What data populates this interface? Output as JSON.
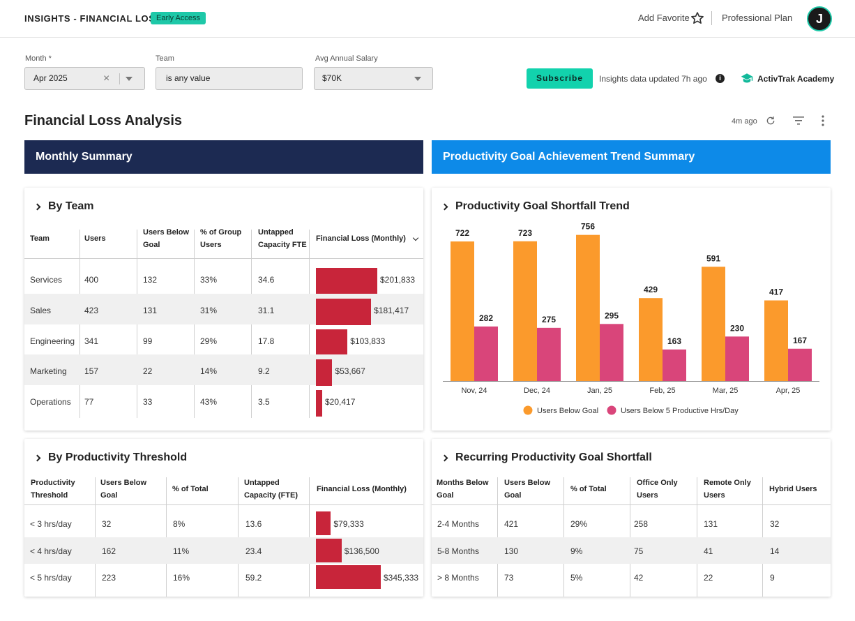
{
  "header": {
    "app_title": "INSIGHTS - FINANCIAL LOSS",
    "badge": "Early Access",
    "add_favorite": "Add Favorite",
    "plan": "Professional Plan",
    "avatar_initial": "J"
  },
  "filters": {
    "month_label": "Month *",
    "month_value": "Apr 2025",
    "team_label": "Team",
    "team_value": "is any value",
    "salary_label": "Avg Annual Salary",
    "salary_value": "$70K",
    "subscribe": "Subscribe",
    "updated": "Insights data updated 7h ago",
    "academy": "ActivTrak Academy"
  },
  "page": {
    "title": "Financial Loss Analysis",
    "updated_ago": "4m ago"
  },
  "banners": {
    "left": "Monthly Summary",
    "right": "Productivity Goal Achievement Trend Summary"
  },
  "colors": {
    "accent": "#12d2ad",
    "navy": "#1c2a52",
    "blue": "#0d8ae8",
    "loss_bar": "#c8253a",
    "orange": "#fb9a2c",
    "pink": "#d9457a"
  },
  "by_team": {
    "title": "By Team",
    "columns": [
      "Team",
      "Users",
      "Users Below Goal",
      "% of Group Users",
      "Untapped Capacity FTE",
      "Financial Loss (Monthly)"
    ],
    "rows": [
      {
        "team": "Services",
        "users": "400",
        "below": "132",
        "pct": "33%",
        "fte": "34.6",
        "loss": "$201,833",
        "loss_value": 201833
      },
      {
        "team": "Sales",
        "users": "423",
        "below": "131",
        "pct": "31%",
        "fte": "31.1",
        "loss": "$181,417",
        "loss_value": 181417
      },
      {
        "team": "Engineering",
        "users": "341",
        "below": "99",
        "pct": "29%",
        "fte": "17.8",
        "loss": "$103,833",
        "loss_value": 103833
      },
      {
        "team": "Marketing",
        "users": "157",
        "below": "22",
        "pct": "14%",
        "fte": "9.2",
        "loss": "$53,667",
        "loss_value": 53667
      },
      {
        "team": "Operations",
        "users": "77",
        "below": "33",
        "pct": "43%",
        "fte": "3.5",
        "loss": "$20,417",
        "loss_value": 20417
      }
    ]
  },
  "by_threshold": {
    "title": "By Productivity Threshold",
    "columns": [
      "Productivity Threshold",
      "Users Below Goal",
      "% of Total",
      "Untapped Capacity (FTE)",
      "Financial Loss (Monthly)"
    ],
    "rows": [
      {
        "threshold": "< 3 hrs/day",
        "below": "32",
        "pct": "8%",
        "fte": "13.6",
        "loss": "$79,333",
        "loss_value": 79333
      },
      {
        "threshold": "< 4 hrs/day",
        "below": "162",
        "pct": "11%",
        "fte": "23.4",
        "loss": "$136,500",
        "loss_value": 136500
      },
      {
        "threshold": "< 5 hrs/day",
        "below": "223",
        "pct": "16%",
        "fte": "59.2",
        "loss": "$345,333",
        "loss_value": 345333
      }
    ]
  },
  "recurring": {
    "title": "Recurring Productivity Goal Shortfall",
    "columns": [
      "Months Below Goal",
      "Users Below Goal",
      "% of Total",
      "Office Only Users",
      "Remote Only Users",
      "Hybrid Users"
    ],
    "rows": [
      {
        "months": "2-4 Months",
        "below": "421",
        "pct": "29%",
        "office": "258",
        "remote": "131",
        "hybrid": "32"
      },
      {
        "months": "5-8 Months",
        "below": "130",
        "pct": "9%",
        "office": "75",
        "remote": "41",
        "hybrid": "14"
      },
      {
        "months": "> 8 Months",
        "below": "73",
        "pct": "5%",
        "office": "42",
        "remote": "22",
        "hybrid": "9"
      }
    ]
  },
  "chart_data": {
    "type": "bar",
    "title": "Productivity Goal Shortfall Trend",
    "categories": [
      "Nov, 24",
      "Dec, 24",
      "Jan, 25",
      "Feb, 25",
      "Mar, 25",
      "Apr, 25"
    ],
    "series": [
      {
        "name": "Users Below Goal",
        "values": [
          722,
          723,
          756,
          429,
          591,
          417
        ],
        "color": "#fb9a2c"
      },
      {
        "name": "Users Below 5 Productive Hrs/Day",
        "values": [
          282,
          275,
          295,
          163,
          230,
          167
        ],
        "color": "#d9457a"
      }
    ],
    "ylim": [
      0,
      780
    ],
    "grid": false,
    "legend": "bottom"
  }
}
